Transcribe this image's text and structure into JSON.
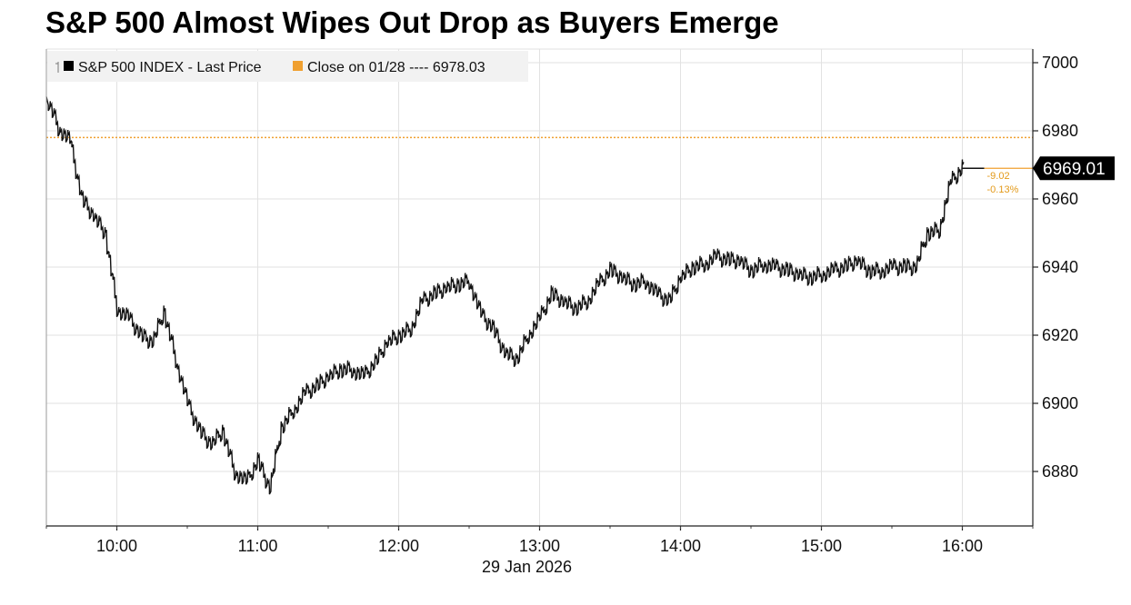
{
  "chart_data": {
    "type": "line",
    "title": "S&P 500 Almost Wipes Out Drop as Buyers Emerge",
    "date_label": "29 Jan 2026",
    "x_ticks": [
      "10:00",
      "11:00",
      "12:00",
      "13:00",
      "14:00",
      "15:00",
      "16:00"
    ],
    "x_range": [
      "09:30",
      "16:30"
    ],
    "y_ticks": [
      6880,
      6900,
      6920,
      6940,
      6960,
      6980,
      7000
    ],
    "ylim": [
      6864,
      7004
    ],
    "grid": true,
    "y_axis_side": "right",
    "legend_placement": "top-left",
    "colors": {
      "series": "#111111",
      "reference": "#f0a030",
      "annotation": "#e39a1a",
      "grid": "#e2e2e2"
    },
    "series": [
      {
        "name": "S&P 500 INDEX - Last Price",
        "x": [
          "09:30",
          "09:35",
          "09:40",
          "09:45",
          "09:50",
          "09:55",
          "10:00",
          "10:05",
          "10:10",
          "10:15",
          "10:20",
          "10:25",
          "10:30",
          "10:35",
          "10:40",
          "10:45",
          "10:50",
          "10:55",
          "11:00",
          "11:05",
          "11:10",
          "11:15",
          "11:20",
          "11:25",
          "11:30",
          "11:35",
          "11:40",
          "11:45",
          "11:50",
          "11:55",
          "12:00",
          "12:05",
          "12:10",
          "12:15",
          "12:20",
          "12:25",
          "12:30",
          "12:35",
          "12:40",
          "12:45",
          "12:50",
          "12:55",
          "13:00",
          "13:05",
          "13:10",
          "13:15",
          "13:20",
          "13:25",
          "13:30",
          "13:35",
          "13:40",
          "13:45",
          "13:50",
          "13:55",
          "14:00",
          "14:05",
          "14:10",
          "14:15",
          "14:20",
          "14:25",
          "14:30",
          "14:35",
          "14:40",
          "14:45",
          "14:50",
          "14:55",
          "15:00",
          "15:05",
          "15:10",
          "15:15",
          "15:20",
          "15:25",
          "15:30",
          "15:35",
          "15:40",
          "15:45",
          "15:50",
          "15:55",
          "16:00"
        ],
        "values": [
          6990,
          6981,
          6977,
          6960,
          6955,
          6950,
          6928,
          6925,
          6920,
          6918,
          6927,
          6913,
          6900,
          6892,
          6888,
          6892,
          6880,
          6877,
          6883,
          6875,
          6893,
          6898,
          6903,
          6905,
          6908,
          6910,
          6910,
          6908,
          6912,
          6918,
          6920,
          6922,
          6930,
          6932,
          6934,
          6935,
          6936,
          6926,
          6922,
          6915,
          6913,
          6920,
          6925,
          6932,
          6930,
          6928,
          6930,
          6935,
          6939,
          6937,
          6935,
          6936,
          6932,
          6930,
          6937,
          6940,
          6941,
          6943,
          6942,
          6942,
          6939,
          6941,
          6940,
          6939,
          6938,
          6937,
          6938,
          6939,
          6940,
          6942,
          6939,
          6939,
          6940,
          6940,
          6940,
          6950,
          6951,
          6965,
          6969.01
        ]
      },
      {
        "name": "Close on 01/28",
        "value": 6978.03,
        "legend_text": "Close on 01/28 ---- 6978.03"
      }
    ],
    "annotations": {
      "last_value": "6969.01",
      "change": "-9.02",
      "change_pct": "-0.13%"
    }
  }
}
